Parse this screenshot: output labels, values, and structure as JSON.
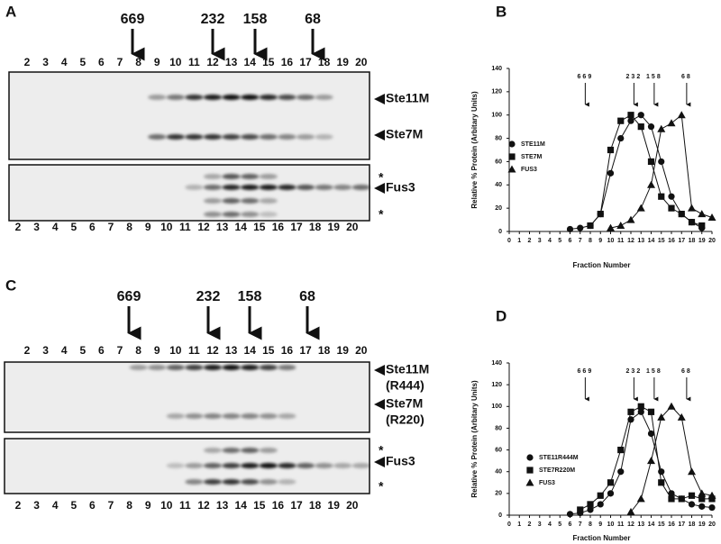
{
  "panel_a": {
    "letter": "A",
    "markers": [
      "669",
      "232",
      "158",
      "68"
    ],
    "lanes_top": [
      2,
      3,
      4,
      5,
      6,
      7,
      8,
      9,
      10,
      11,
      12,
      13,
      14,
      15,
      16,
      17,
      18,
      19,
      20
    ],
    "lanes_bottom": [
      2,
      3,
      4,
      5,
      6,
      7,
      8,
      9,
      10,
      11,
      12,
      13,
      14,
      15,
      16,
      17,
      18,
      19,
      20
    ],
    "blot_labels": [
      "Ste11M",
      "Ste7M"
    ],
    "fus_labels": [
      "*",
      "Fus3",
      "*"
    ]
  },
  "panel_c": {
    "letter": "C",
    "markers": [
      "669",
      "232",
      "158",
      "68"
    ],
    "lanes_top": [
      2,
      3,
      4,
      5,
      6,
      7,
      8,
      9,
      10,
      11,
      12,
      13,
      14,
      15,
      16,
      17,
      18,
      19,
      20
    ],
    "lanes_bottom": [
      2,
      3,
      4,
      5,
      6,
      7,
      8,
      9,
      10,
      11,
      12,
      13,
      14,
      15,
      16,
      17,
      18,
      19,
      20
    ],
    "blot_labels": [
      "Ste11M",
      "(R444)",
      "Ste7M",
      "(R220)"
    ],
    "fus_labels": [
      "*",
      "Fus3",
      "*"
    ]
  },
  "chart_data": [
    {
      "type": "line",
      "label": "B",
      "y_label": "Relative  %  Protein  (Arbitary  Units)",
      "x_label": "Fraction  Number",
      "xlim": [
        0,
        20
      ],
      "xticks": [
        0,
        1,
        2,
        3,
        4,
        5,
        6,
        7,
        8,
        9,
        10,
        11,
        12,
        13,
        14,
        15,
        16,
        17,
        18,
        19,
        20
      ],
      "ylim": [
        0,
        140
      ],
      "yticks": [
        0,
        20,
        40,
        60,
        80,
        100,
        120,
        140
      ],
      "markers": [
        {
          "label": "669",
          "x": 7.5
        },
        {
          "label": "232",
          "x": 12.3
        },
        {
          "label": "158",
          "x": 14.3
        },
        {
          "label": "68",
          "x": 17.5
        }
      ],
      "series": [
        {
          "name": "STE11M",
          "marker": "circle",
          "color": "#111111",
          "x": [
            6,
            7,
            8,
            9,
            10,
            11,
            12,
            13,
            14,
            15,
            16,
            17,
            18,
            19
          ],
          "values": [
            2,
            3,
            5,
            15,
            50,
            80,
            95,
            100,
            90,
            60,
            30,
            15,
            8,
            3
          ]
        },
        {
          "name": "STE7M",
          "marker": "square",
          "color": "#111111",
          "x": [
            8,
            9,
            10,
            11,
            12,
            13,
            14,
            15,
            16,
            17,
            18,
            19
          ],
          "values": [
            5,
            15,
            70,
            95,
            100,
            90,
            60,
            30,
            20,
            15,
            8,
            5
          ]
        },
        {
          "name": "FUS3",
          "marker": "triangle",
          "color": "#111111",
          "x": [
            10,
            11,
            12,
            13,
            14,
            15,
            16,
            17,
            18,
            19,
            20
          ],
          "values": [
            3,
            5,
            10,
            20,
            40,
            88,
            93,
            100,
            20,
            15,
            12
          ]
        }
      ]
    },
    {
      "type": "line",
      "label": "D",
      "y_label": "Relative  %  Protein  (Arbitary  Units)",
      "x_label": "Fraction  Number",
      "xlim": [
        0,
        20
      ],
      "xticks": [
        0,
        1,
        2,
        3,
        4,
        5,
        6,
        7,
        8,
        9,
        10,
        11,
        12,
        13,
        14,
        15,
        16,
        17,
        18,
        19,
        20
      ],
      "ylim": [
        0,
        140
      ],
      "yticks": [
        0,
        20,
        40,
        60,
        80,
        100,
        120,
        140
      ],
      "markers": [
        {
          "label": "669",
          "x": 7.5
        },
        {
          "label": "232",
          "x": 12.3
        },
        {
          "label": "158",
          "x": 14.3
        },
        {
          "label": "68",
          "x": 17.5
        }
      ],
      "series": [
        {
          "name": "STE11R444M",
          "marker": "circle",
          "color": "#111111",
          "x": [
            6,
            7,
            8,
            9,
            10,
            11,
            12,
            13,
            14,
            15,
            16,
            17,
            18,
            19,
            20
          ],
          "values": [
            1,
            2,
            5,
            10,
            20,
            40,
            88,
            95,
            75,
            40,
            20,
            15,
            10,
            8,
            7
          ]
        },
        {
          "name": "STE7R220M",
          "marker": "square",
          "color": "#111111",
          "x": [
            7,
            8,
            9,
            10,
            11,
            12,
            13,
            14,
            15,
            16,
            17,
            18,
            19,
            20
          ],
          "values": [
            5,
            10,
            18,
            30,
            60,
            95,
            100,
            95,
            30,
            15,
            15,
            18,
            15,
            15
          ]
        },
        {
          "name": "FUS3",
          "marker": "triangle",
          "color": "#111111",
          "x": [
            12,
            13,
            14,
            15,
            16,
            17,
            18,
            19,
            20
          ],
          "values": [
            3,
            15,
            50,
            90,
            100,
            90,
            40,
            20,
            18
          ]
        }
      ]
    }
  ]
}
